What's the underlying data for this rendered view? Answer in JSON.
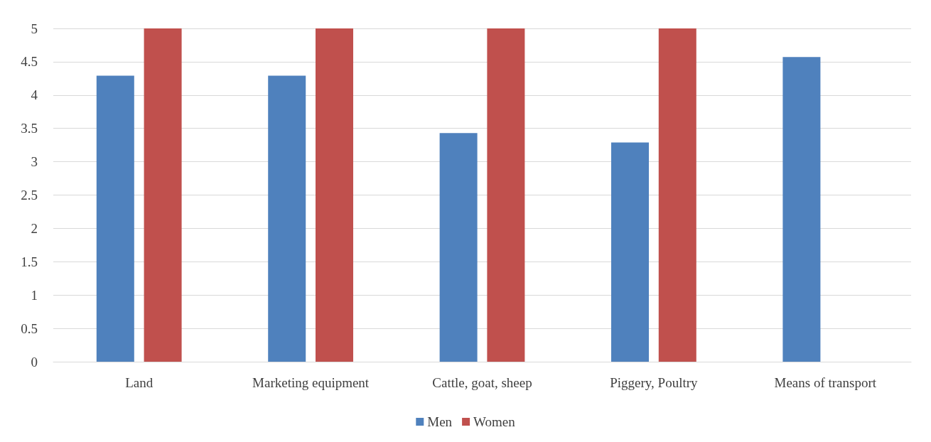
{
  "chart_data": {
    "type": "bar",
    "categories": [
      "Land",
      "Marketing equipment",
      "Cattle, goat, sheep",
      "Piggery, Poultry",
      "Means of transport"
    ],
    "series": [
      {
        "name": "Men",
        "color": "#4f81bd",
        "values": [
          4.29,
          4.29,
          3.43,
          3.29,
          4.57
        ]
      },
      {
        "name": "Women",
        "color": "#c0504d",
        "values": [
          5,
          5,
          5,
          5,
          null
        ]
      }
    ],
    "ylim": [
      0,
      5
    ],
    "yticks": [
      0,
      0.5,
      1,
      1.5,
      2,
      2.5,
      3,
      3.5,
      4,
      4.5,
      5
    ],
    "grid": "y",
    "legend": "bottom"
  }
}
